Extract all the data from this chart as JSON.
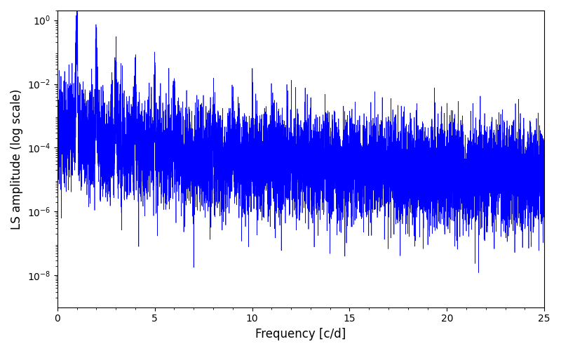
{
  "title": "",
  "xlabel": "Frequency [c/d]",
  "ylabel": "LS amplitude (log scale)",
  "line_color": "blue",
  "line_width": 0.5,
  "xlim": [
    0,
    25
  ],
  "ylim": [
    1e-09,
    2.0
  ],
  "yticks": [
    1e-08,
    1e-06,
    0.0001,
    0.01,
    1.0
  ],
  "background_color": "#ffffff",
  "figsize": [
    8.0,
    5.0
  ],
  "dpi": 100,
  "seed": 1234
}
